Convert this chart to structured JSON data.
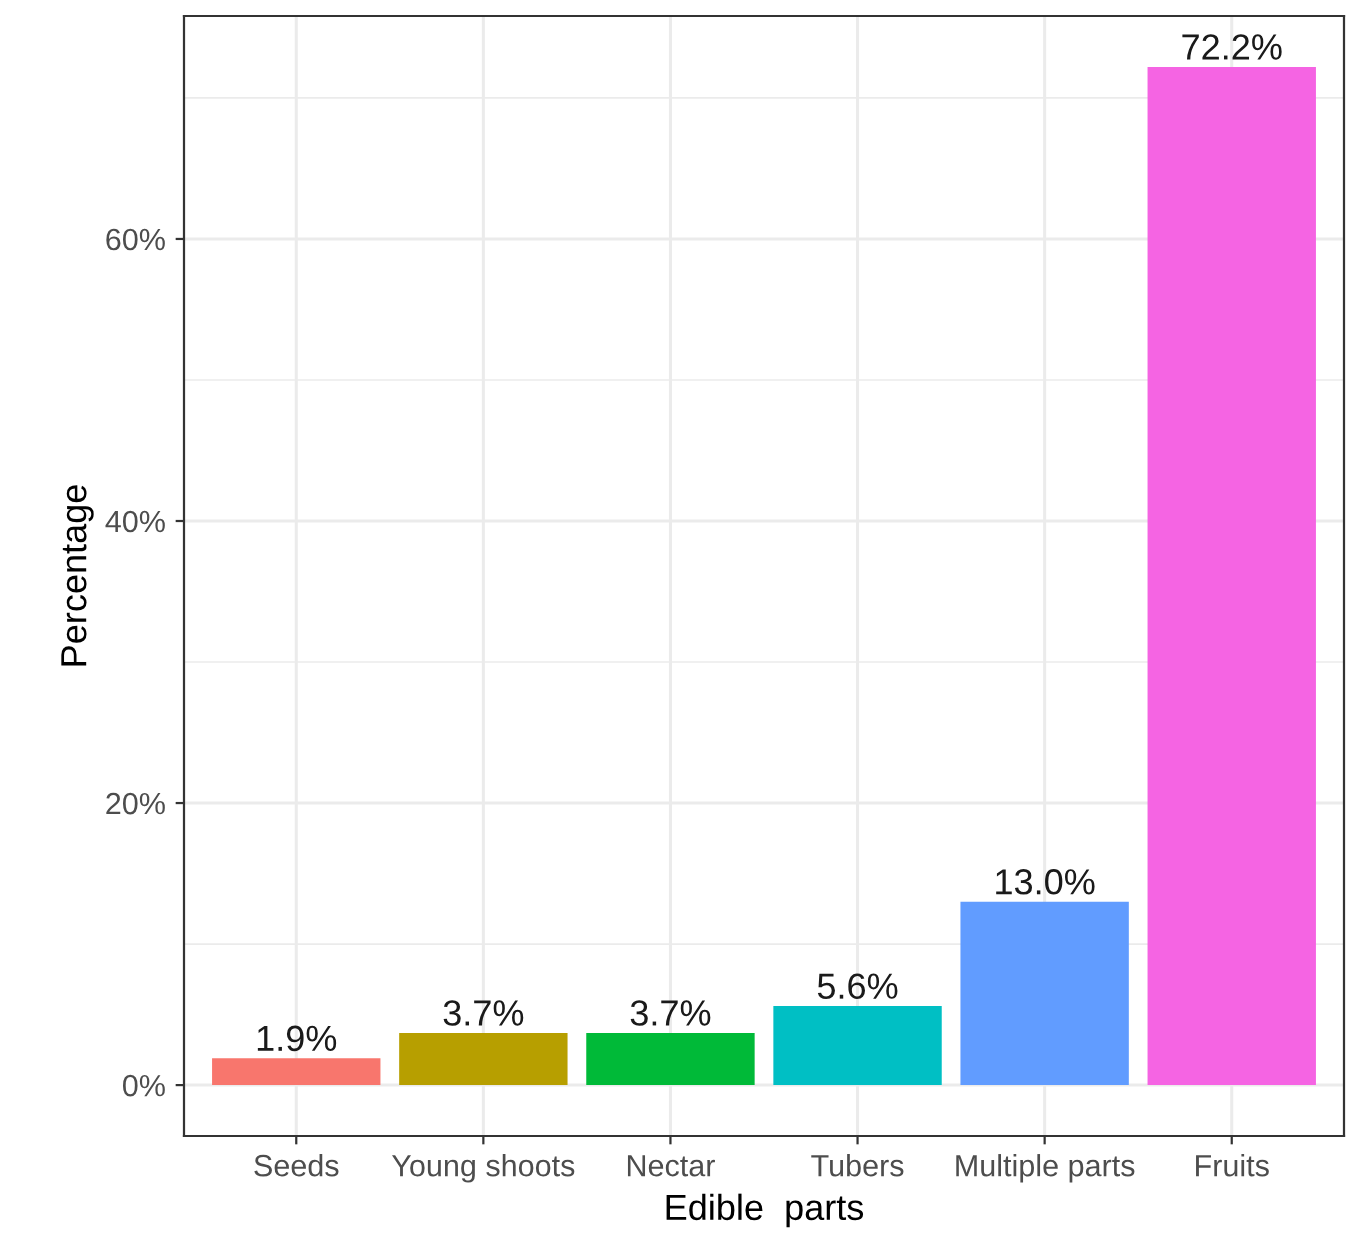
{
  "chart_data": {
    "type": "bar",
    "xlabel": "Edible  parts",
    "ylabel": "Percentage",
    "categories": [
      "Seeds",
      "Young shoots",
      "Nectar",
      "Tubers",
      "Multiple parts",
      "Fruits"
    ],
    "values": [
      1.9,
      3.7,
      3.7,
      5.6,
      13.0,
      72.2
    ],
    "colors": [
      "#f8766d",
      "#b79f00",
      "#00ba38",
      "#00bfc4",
      "#619cff",
      "#f564e3"
    ],
    "value_labels": [
      "1.9%",
      "3.7%",
      "3.7%",
      "5.6%",
      "13.0%",
      "72.2%"
    ],
    "ylim": [
      -3.61,
      75.81
    ],
    "yticks": [
      {
        "value": 0,
        "label": "0%"
      },
      {
        "value": 10,
        "label": null
      },
      {
        "value": 20,
        "label": "20%"
      },
      {
        "value": 30,
        "label": null
      },
      {
        "value": 40,
        "label": "40%"
      },
      {
        "value": 50,
        "label": null
      },
      {
        "value": 60,
        "label": "60%"
      },
      {
        "value": 70,
        "label": null
      }
    ],
    "grid": true,
    "legend": false
  }
}
